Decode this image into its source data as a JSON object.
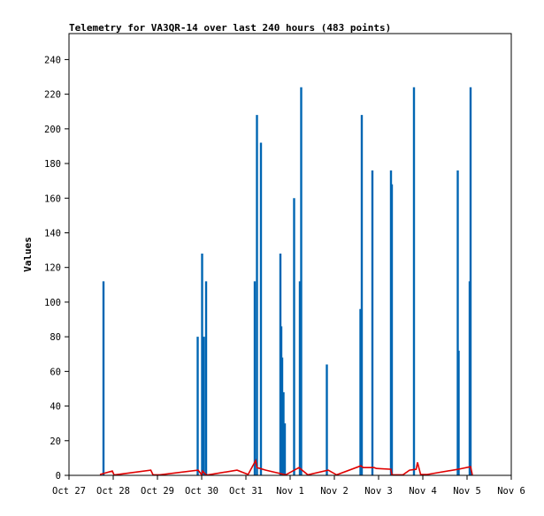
{
  "chart_data": {
    "type": "bar",
    "title": "Telemetry for VA3QR-14 over last 240 hours (483 points)",
    "xlabel": "",
    "ylabel": "Values",
    "xlim": [
      0,
      10
    ],
    "ylim": [
      0,
      255
    ],
    "x_tick_labels": [
      "Oct 27",
      "Oct 28",
      "Oct 29",
      "Oct 30",
      "Oct 31",
      "Nov 1",
      "Nov 2",
      "Nov 3",
      "Nov 4",
      "Nov 5",
      "Nov 6"
    ],
    "y_ticks": [
      0,
      20,
      40,
      60,
      80,
      100,
      120,
      140,
      160,
      180,
      200,
      220,
      240
    ],
    "grid": false,
    "colors": {
      "bars": "#0066b3",
      "line": "#e00000",
      "frame": "#000000"
    },
    "series": [
      {
        "type": "bar",
        "x": [
          0.78,
          2.91,
          3.01,
          3.05,
          3.1,
          4.2,
          4.25,
          4.34,
          4.78,
          4.8,
          4.82,
          4.85,
          4.88,
          5.09,
          5.22,
          5.25,
          5.83,
          6.59,
          6.62,
          6.86,
          7.28,
          7.3,
          7.8,
          8.79,
          8.81,
          9.06,
          9.08
        ],
        "values": [
          112,
          80,
          128,
          80,
          112,
          112,
          208,
          192,
          128,
          86,
          68,
          48,
          30,
          160,
          112,
          224,
          64,
          96,
          208,
          176,
          176,
          168,
          224,
          176,
          72,
          112,
          224
        ]
      },
      {
        "type": "line",
        "x": [
          0.7,
          0.98,
          1.02,
          1.85,
          1.9,
          2.05,
          2.92,
          3.0,
          3.02,
          3.1,
          3.15,
          3.8,
          4.05,
          4.22,
          4.25,
          4.45,
          4.9,
          5.2,
          5.4,
          5.86,
          6.05,
          6.6,
          6.65,
          6.9,
          6.95,
          7.28,
          7.3,
          7.55,
          7.7,
          7.85,
          7.88,
          7.95,
          8.1,
          8.8,
          9.08,
          9.12
        ],
        "values": [
          0.5,
          2.5,
          0.2,
          3.0,
          0.3,
          0.3,
          3.0,
          0.3,
          2.5,
          0.3,
          0.3,
          3.0,
          0.5,
          8.5,
          4.5,
          3.0,
          0.3,
          4.5,
          0.3,
          3.0,
          0.3,
          5.5,
          4.5,
          4.5,
          4.0,
          3.5,
          0.3,
          0.3,
          3.0,
          3.5,
          7.5,
          0.5,
          0.5,
          3.5,
          5.0,
          0.3
        ]
      }
    ]
  }
}
